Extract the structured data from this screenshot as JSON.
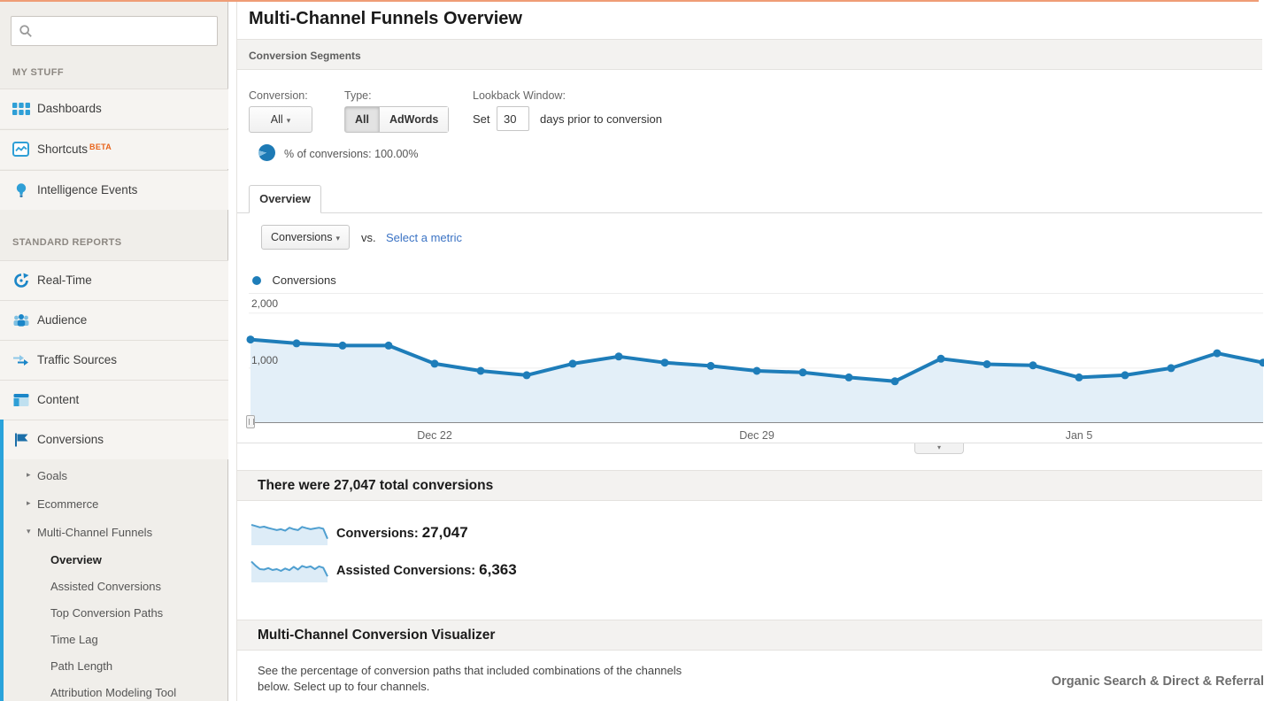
{
  "page": {
    "title": "Multi-Channel Funnels Overview"
  },
  "sidebar": {
    "my_stuff": {
      "header": "MY STUFF",
      "items": [
        {
          "label": "Dashboards"
        },
        {
          "label": "Shortcuts",
          "badge": "BETA"
        },
        {
          "label": "Intelligence Events"
        }
      ]
    },
    "standard_reports": {
      "header": "STANDARD REPORTS",
      "items": [
        {
          "label": "Real-Time"
        },
        {
          "label": "Audience"
        },
        {
          "label": "Traffic Sources"
        },
        {
          "label": "Content"
        },
        {
          "label": "Conversions"
        }
      ]
    },
    "submenu": {
      "goals": "Goals",
      "ecommerce": "Ecommerce",
      "mcf": "Multi-Channel Funnels",
      "mcf_children": [
        "Overview",
        "Assisted Conversions",
        "Top Conversion Paths",
        "Time Lag",
        "Path Length",
        "Attribution Modeling Tool"
      ],
      "active_child": "Overview"
    }
  },
  "segments_bar": {
    "label": "Conversion Segments"
  },
  "controls": {
    "conversion_label": "Conversion:",
    "conversion_value": "All",
    "type_label": "Type:",
    "type_options": [
      "All",
      "AdWords"
    ],
    "type_selected": "All",
    "lookback_label": "Lookback Window:",
    "lookback_prefix": "Set",
    "lookback_value": "30",
    "lookback_suffix": "days prior to conversion",
    "percent_line": "% of conversions: 100.00%"
  },
  "tabs": {
    "overview": "Overview"
  },
  "metric_selector": {
    "primary": "Conversions",
    "vs": "vs.",
    "secondary_link": "Select a metric"
  },
  "legend": {
    "label": "Conversions"
  },
  "chart_data": {
    "type": "line",
    "title": "Conversions",
    "x": [
      "Dec 18",
      "Dec 19",
      "Dec 20",
      "Dec 21",
      "Dec 22",
      "Dec 23",
      "Dec 24",
      "Dec 25",
      "Dec 26",
      "Dec 27",
      "Dec 28",
      "Dec 29",
      "Dec 30",
      "Dec 31",
      "Jan 1",
      "Jan 2",
      "Jan 3",
      "Jan 4",
      "Jan 5",
      "Jan 6",
      "Jan 7",
      "Jan 8",
      "Jan 9"
    ],
    "series": [
      {
        "name": "Conversions",
        "values": [
          1520,
          1450,
          1410,
          1410,
          1080,
          950,
          870,
          1080,
          1210,
          1100,
          1040,
          950,
          920,
          830,
          760,
          1170,
          1070,
          1050,
          830,
          870,
          1000,
          1270,
          1100
        ]
      }
    ],
    "x_tick_labels": [
      "Dec 22",
      "Dec 29",
      "Jan 5"
    ],
    "y_tick_labels": [
      "2,000",
      "1,000"
    ],
    "ylim": [
      0,
      2350
    ],
    "grid": "horizontal",
    "legend_position": "top-left",
    "line_color": "#1e7db9",
    "fill_color": "#e3eff8",
    "sparklines": {
      "conversions": [
        8.8,
        8.2,
        7.6,
        7.9,
        7.3,
        6.8,
        6.3,
        6.7,
        6.0,
        7.4,
        6.7,
        6.3,
        7.8,
        7.2,
        6.7,
        7.1,
        7.4,
        6.9,
        2.2
      ],
      "assisted": [
        9.0,
        7.0,
        5.4,
        5.2,
        5.9,
        5.0,
        5.4,
        4.6,
        5.7,
        4.9,
        6.5,
        5.2,
        6.9,
        6.2,
        6.7,
        5.4,
        6.7,
        6.1,
        2.0
      ]
    }
  },
  "summary": {
    "headline": "There were 27,047 total conversions",
    "rows": [
      {
        "label": "Conversions:",
        "value": "27,047"
      },
      {
        "label": "Assisted Conversions:",
        "value": "6,363"
      }
    ]
  },
  "visualizer": {
    "title": "Multi-Channel Conversion Visualizer",
    "description_line1": "See the percentage of conversion paths that included combinations of the channels",
    "description_line2": "below. Select up to four channels.",
    "channel_combo": "Organic Search & Direct & Referral"
  },
  "colors": {
    "accent_blue": "#1e7db9",
    "icon_blue": "#2f9fd6",
    "icon_dark_blue": "#1b6ea8",
    "link_blue": "#3b73c4",
    "beta_orange": "#e8641c",
    "active_bar_blue": "#2aa3db",
    "top_strip": "#ef9d76",
    "panel_gray": "#f3f2f0"
  }
}
